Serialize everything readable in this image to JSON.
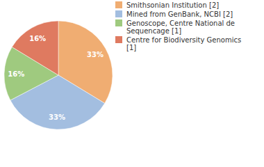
{
  "chart_data": {
    "type": "pie",
    "categories": [
      "Smithsonian Institution [2]",
      "Mined from GenBank, NCBI [2]",
      "Genoscope, Centre National de Sequencage [1]",
      "Centre for Biodiversity Genomics [1]"
    ],
    "values": [
      33,
      33,
      16,
      16
    ],
    "value_labels": [
      "33%",
      "33%",
      "16%",
      "16%"
    ],
    "colors": [
      "#f0ad72",
      "#a3bee0",
      "#9fca7f",
      "#df7a60"
    ],
    "data_labels": true,
    "legend": "top-right"
  }
}
